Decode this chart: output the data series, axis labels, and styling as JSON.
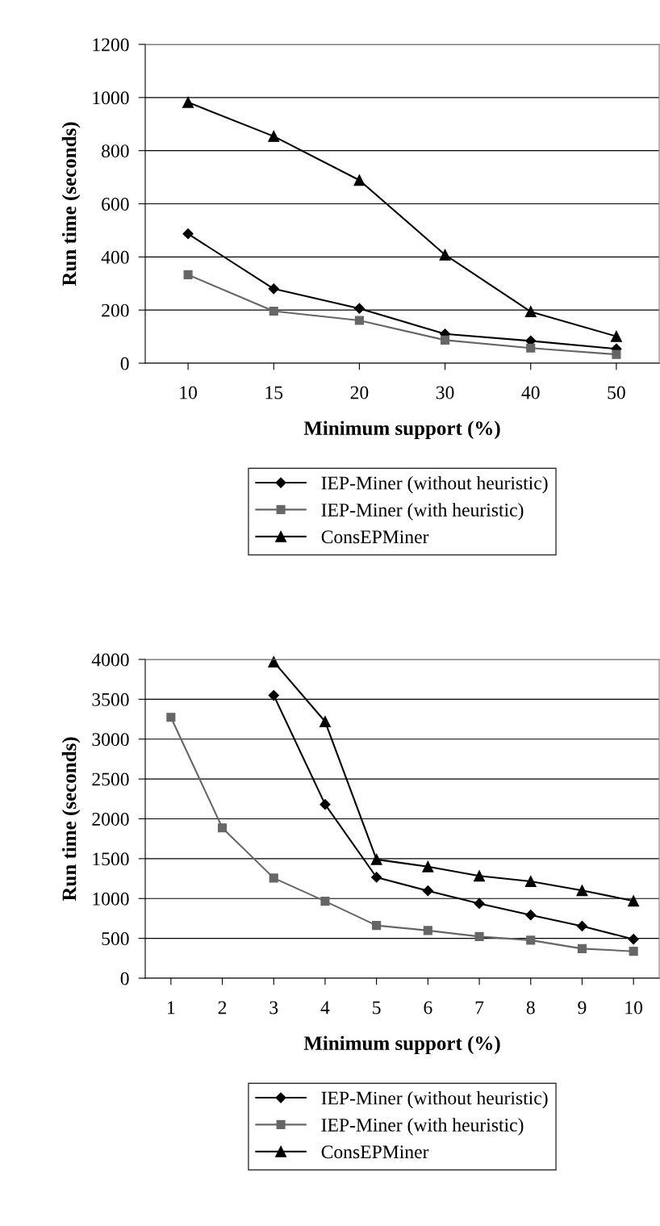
{
  "chart_data": [
    {
      "type": "line",
      "xlabel": "Minimum support (%)",
      "ylabel": "Run time (seconds)",
      "categories": [
        "10",
        "15",
        "20",
        "30",
        "40",
        "50"
      ],
      "ylim": [
        0,
        1200
      ],
      "yticks": [
        0,
        200,
        400,
        600,
        800,
        1000,
        1200
      ],
      "grid": "y",
      "legend": "bottom",
      "series": [
        {
          "name": "IEP-Miner (without heuristic)",
          "color": "#000000",
          "marker": "diamond",
          "values": [
            487,
            280,
            206,
            110,
            84,
            54
          ]
        },
        {
          "name": "IEP-Miner (with heuristic)",
          "color": "#666666",
          "marker": "square",
          "values": [
            333,
            196,
            161,
            87,
            57,
            33
          ]
        },
        {
          "name": "ConsEPMiner",
          "color": "#000000",
          "marker": "triangle",
          "values": [
            982,
            854,
            689,
            408,
            194,
            101
          ]
        }
      ]
    },
    {
      "type": "line",
      "xlabel": "Minimum support (%)",
      "ylabel": "Run time (seconds)",
      "categories": [
        "1",
        "2",
        "3",
        "4",
        "5",
        "6",
        "7",
        "8",
        "9",
        "10"
      ],
      "ylim": [
        0,
        4000
      ],
      "yticks": [
        0,
        500,
        1000,
        1500,
        2000,
        2500,
        3000,
        3500,
        4000
      ],
      "grid": "y",
      "legend": "bottom",
      "series": [
        {
          "name": "IEP-Miner (without heuristic)",
          "color": "#000000",
          "marker": "diamond",
          "values": [
            null,
            null,
            3549,
            2181,
            1266,
            1097,
            937,
            793,
            654,
            489
          ]
        },
        {
          "name": "IEP-Miner (with heuristic)",
          "color": "#666666",
          "marker": "square",
          "values": [
            3274,
            1886,
            1257,
            966,
            662,
            599,
            523,
            477,
            371,
            338
          ]
        },
        {
          "name": "ConsEPMiner",
          "color": "#000000",
          "marker": "triangle",
          "values": [
            null,
            null,
            3970,
            3220,
            1490,
            1400,
            1283,
            1215,
            1101,
            970
          ]
        }
      ]
    }
  ]
}
